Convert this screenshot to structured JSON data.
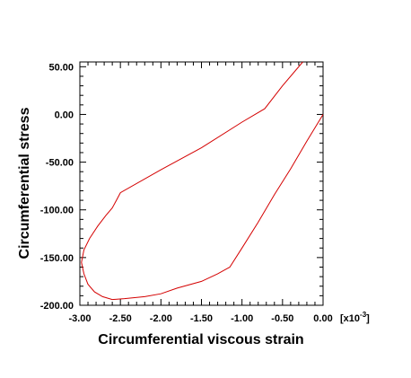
{
  "chart_data": {
    "type": "line",
    "title": "",
    "xlabel": "Circumferential viscous strain",
    "ylabel": "Circumferential stress",
    "x_multiplier_label": "[x10",
    "x_multiplier_exp": "-3",
    "x_multiplier_close": "]",
    "xlim": [
      -3.0,
      0.0
    ],
    "ylim": [
      -200,
      55
    ],
    "xticks": [
      -3.0,
      -2.5,
      -2.0,
      -1.5,
      -1.0,
      -0.5,
      0.0
    ],
    "xtick_labels": [
      "-3.00",
      "-2.50",
      "-2.00",
      "-1.50",
      "-1.00",
      "-0.50",
      "0.00"
    ],
    "yticks": [
      -200,
      -150,
      -100,
      -50,
      0,
      50
    ],
    "ytick_labels": [
      "-200.00",
      "-150.00",
      "-100.00",
      "-50.00",
      "0.00",
      "50.00"
    ],
    "grid": false,
    "line_color": "#d40000",
    "series": [
      {
        "x": [
          -0.25,
          -0.5,
          -0.72,
          -1.0,
          -1.5,
          -2.0,
          -2.5,
          -2.55,
          -2.6,
          -2.68,
          -2.78,
          -2.88,
          -2.95,
          -2.98,
          -2.95,
          -2.9,
          -2.82,
          -2.72,
          -2.6,
          -2.45,
          -2.2,
          -2.0,
          -1.8,
          -1.5,
          -1.3,
          -1.15,
          -1.0,
          -0.8,
          -0.6,
          -0.4,
          -0.2,
          0.0
        ],
        "y": [
          55,
          30,
          6,
          -8,
          -35,
          -58,
          -82,
          -90,
          -98,
          -106,
          -117,
          -130,
          -142,
          -155,
          -167,
          -178,
          -186,
          -191,
          -194,
          -193,
          -191,
          -188,
          -182,
          -175,
          -167,
          -160,
          -140,
          -113,
          -84,
          -57,
          -28,
          0
        ]
      }
    ]
  }
}
